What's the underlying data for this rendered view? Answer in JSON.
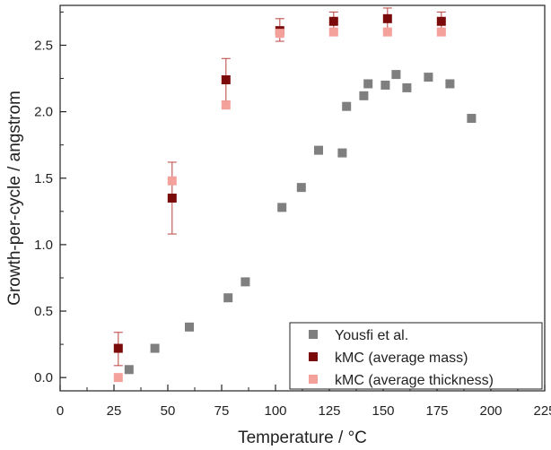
{
  "chart_data": {
    "type": "scatter",
    "xlabel": "Temperature / °C",
    "ylabel": "Growth-per-cycle / angstrom",
    "xlim": [
      0,
      225
    ],
    "ylim": [
      -0.1,
      2.8
    ],
    "x_ticks": [
      0,
      25,
      50,
      75,
      100,
      125,
      150,
      175,
      200,
      225
    ],
    "x_tick_labels": [
      "0",
      "25",
      "50",
      "75",
      "100",
      "125",
      "150",
      "175",
      "200",
      "225"
    ],
    "y_ticks": [
      0.0,
      0.5,
      1.0,
      1.5,
      2.0,
      2.5
    ],
    "y_tick_labels": [
      "0.0",
      "0.5",
      "1.0",
      "1.5",
      "2.0",
      "2.5"
    ],
    "grid": false,
    "legend_position": "bottom-right",
    "series": [
      {
        "name": "Yousfi et al.",
        "color": "#7f7f7f",
        "marker": "square",
        "points": [
          {
            "x": 32,
            "y": 0.06
          },
          {
            "x": 44,
            "y": 0.22
          },
          {
            "x": 60,
            "y": 0.38
          },
          {
            "x": 78,
            "y": 0.6
          },
          {
            "x": 86,
            "y": 0.72
          },
          {
            "x": 103,
            "y": 1.28
          },
          {
            "x": 112,
            "y": 1.43
          },
          {
            "x": 120,
            "y": 1.71
          },
          {
            "x": 131,
            "y": 1.69
          },
          {
            "x": 133,
            "y": 2.04
          },
          {
            "x": 141,
            "y": 2.12
          },
          {
            "x": 143,
            "y": 2.21
          },
          {
            "x": 151,
            "y": 2.2
          },
          {
            "x": 156,
            "y": 2.28
          },
          {
            "x": 161,
            "y": 2.18
          },
          {
            "x": 171,
            "y": 2.26
          },
          {
            "x": 181,
            "y": 2.21
          },
          {
            "x": 191,
            "y": 1.95
          }
        ]
      },
      {
        "name": "kMC (average mass)",
        "color": "#7b0a0a",
        "marker": "square",
        "error_color": "#c0504d",
        "points": [
          {
            "x": 27,
            "y": 0.22,
            "err_low": 0.13,
            "err_high": 0.12
          },
          {
            "x": 52,
            "y": 1.35,
            "err_low": 0.27,
            "err_high": 0.27
          },
          {
            "x": 77,
            "y": 2.24,
            "err_low": 0.16,
            "err_high": 0.16
          },
          {
            "x": 102,
            "y": 2.61,
            "err_low": 0.08,
            "err_high": 0.09
          },
          {
            "x": 127,
            "y": 2.68,
            "err_low": 0.07,
            "err_high": 0.07
          },
          {
            "x": 152,
            "y": 2.7,
            "err_low": 0.08,
            "err_high": 0.08
          },
          {
            "x": 177,
            "y": 2.68,
            "err_low": 0.07,
            "err_high": 0.07
          }
        ]
      },
      {
        "name": "kMC (average thickness)",
        "color": "#f4a09b",
        "marker": "square",
        "points": [
          {
            "x": 27,
            "y": 0.0
          },
          {
            "x": 52,
            "y": 1.48
          },
          {
            "x": 77,
            "y": 2.05
          },
          {
            "x": 102,
            "y": 2.59
          },
          {
            "x": 127,
            "y": 2.6
          },
          {
            "x": 152,
            "y": 2.6
          },
          {
            "x": 177,
            "y": 2.6
          }
        ]
      }
    ]
  }
}
